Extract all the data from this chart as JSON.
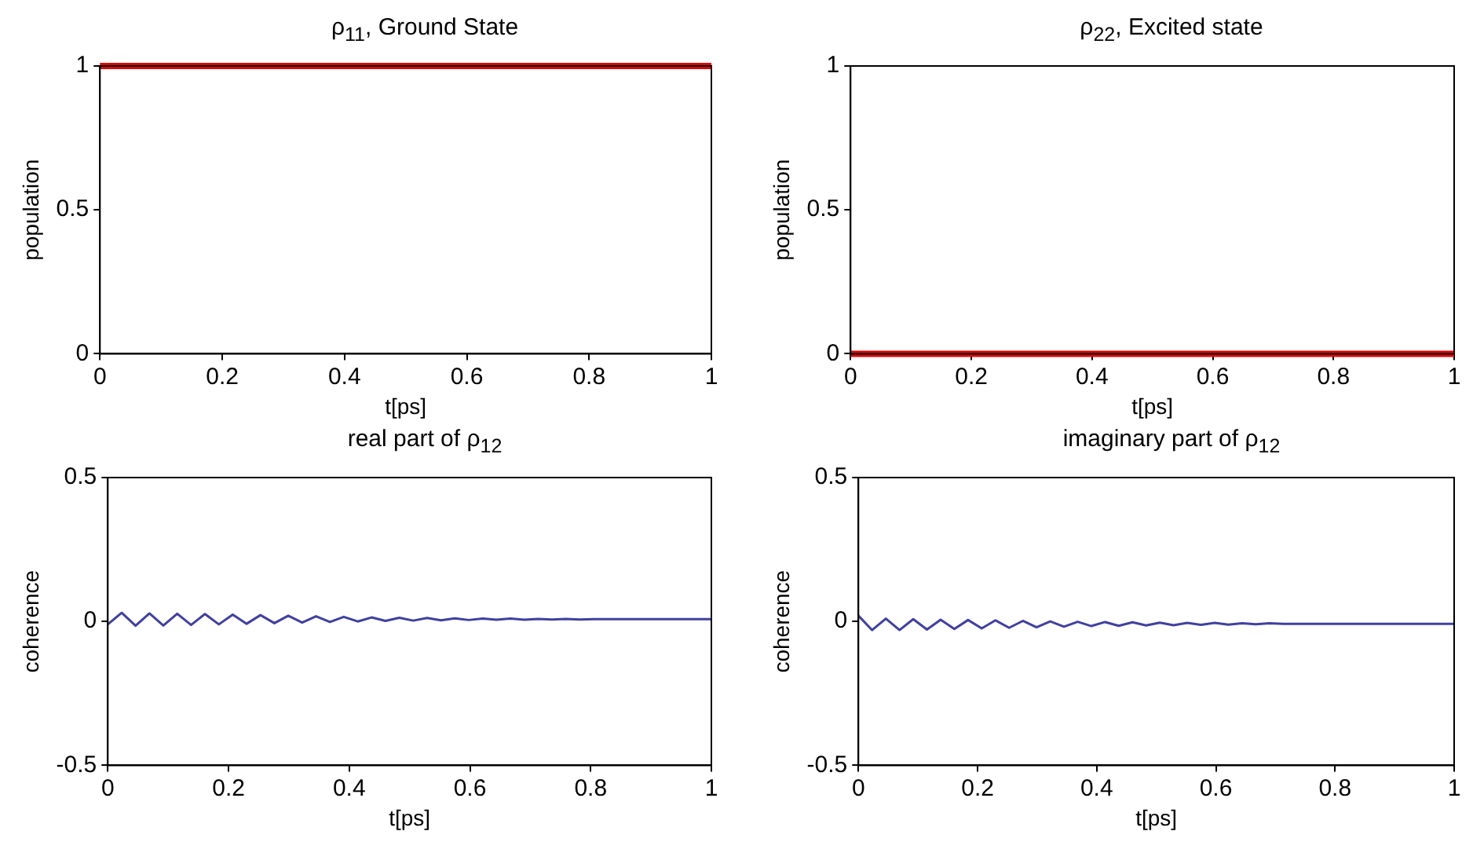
{
  "chart_data": [
    {
      "type": "line",
      "title": "ρ$_{11}$, Ground State",
      "xlabel": "t[ps]",
      "ylabel": "population",
      "x": [
        0,
        1
      ],
      "series": [
        {
          "color": "#e00000",
          "values": [
            1,
            1
          ]
        }
      ],
      "xlim": [
        0,
        1
      ],
      "xticks": [
        0,
        0.2,
        0.4,
        0.6,
        0.8,
        1
      ],
      "ylim": [
        0,
        1
      ],
      "yticks": [
        0,
        0.5,
        1
      ],
      "grid": false
    },
    {
      "type": "line",
      "title": "ρ$_{22}$, Excited state",
      "xlabel": "t[ps]",
      "ylabel": "population",
      "x": [
        0,
        1
      ],
      "series": [
        {
          "color": "#e00000",
          "values": [
            0,
            0
          ]
        }
      ],
      "xlim": [
        0,
        1
      ],
      "xticks": [
        0,
        0.2,
        0.4,
        0.6,
        0.8,
        1
      ],
      "ylim": [
        0,
        1
      ],
      "yticks": [
        0,
        0.5,
        1
      ],
      "grid": false
    },
    {
      "type": "line",
      "title": "real part of ρ$_{12}$",
      "xlabel": "t[ps]",
      "ylabel": "coherence",
      "x": [
        0,
        0.023,
        0.046,
        0.069,
        0.092,
        0.115,
        0.138,
        0.161,
        0.184,
        0.207,
        0.23,
        0.253,
        0.276,
        0.299,
        0.322,
        0.345,
        0.368,
        0.391,
        0.414,
        0.437,
        0.46,
        0.483,
        0.506,
        0.529,
        0.552,
        0.575,
        0.598,
        0.621,
        0.644,
        0.667,
        0.69,
        0.713,
        0.736,
        0.759,
        0.782,
        0.805,
        1
      ],
      "series": [
        {
          "color": "#4040a0",
          "values": [
            -0.01,
            0.03,
            -0.015,
            0.028,
            -0.014,
            0.027,
            -0.012,
            0.026,
            -0.01,
            0.024,
            -0.008,
            0.022,
            -0.006,
            0.02,
            -0.004,
            0.018,
            -0.002,
            0.016,
            0,
            0.014,
            0.002,
            0.013,
            0.003,
            0.012,
            0.004,
            0.011,
            0.005,
            0.01,
            0.006,
            0.01,
            0.006,
            0.009,
            0.007,
            0.009,
            0.007,
            0.008,
            0.008
          ]
        }
      ],
      "xlim": [
        0,
        1
      ],
      "xticks": [
        0,
        0.2,
        0.4,
        0.6,
        0.8,
        1
      ],
      "ylim": [
        -0.5,
        0.5
      ],
      "yticks": [
        -0.5,
        0,
        0.5
      ],
      "grid": false
    },
    {
      "type": "line",
      "title": "imaginary part of ρ$_{12}$",
      "xlabel": "t[ps]",
      "ylabel": "coherence",
      "x": [
        0,
        0.023,
        0.046,
        0.069,
        0.092,
        0.115,
        0.138,
        0.161,
        0.184,
        0.207,
        0.23,
        0.253,
        0.276,
        0.299,
        0.322,
        0.345,
        0.368,
        0.391,
        0.414,
        0.437,
        0.46,
        0.483,
        0.506,
        0.529,
        0.552,
        0.575,
        0.598,
        0.621,
        0.644,
        0.667,
        0.69,
        0.713,
        1
      ],
      "series": [
        {
          "color": "#4040a0",
          "values": [
            0.02,
            -0.03,
            0.01,
            -0.03,
            0.008,
            -0.028,
            0.006,
            -0.026,
            0.005,
            -0.024,
            0.004,
            -0.022,
            0.002,
            -0.02,
            0,
            -0.018,
            -0.001,
            -0.016,
            -0.002,
            -0.015,
            -0.003,
            -0.014,
            -0.004,
            -0.013,
            -0.005,
            -0.012,
            -0.005,
            -0.011,
            -0.006,
            -0.01,
            -0.006,
            -0.008,
            -0.008
          ]
        }
      ],
      "xlim": [
        0,
        1
      ],
      "xticks": [
        0,
        0.2,
        0.4,
        0.6,
        0.8,
        1
      ],
      "ylim": [
        -0.5,
        0.5
      ],
      "yticks": [
        -0.5,
        0,
        0.5
      ],
      "grid": false
    }
  ]
}
